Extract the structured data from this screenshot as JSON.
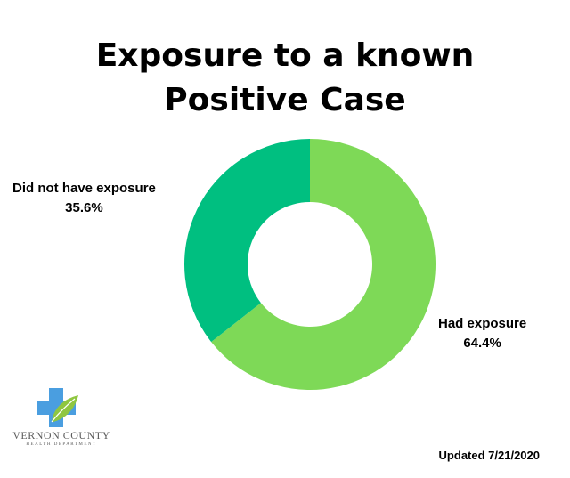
{
  "chart_data": {
    "type": "pie",
    "title_lines": [
      "Exposure to a known",
      "Positive Case"
    ],
    "slices": [
      {
        "name": "Had exposure",
        "label": "64.4%",
        "value": 64.4,
        "color": "#7ed957"
      },
      {
        "name": "Did not have exposure",
        "label": "35.6%",
        "value": 35.6,
        "color": "#00bf80"
      }
    ],
    "legend": "none"
  },
  "logo": {
    "name": "VERNON COUNTY",
    "subtitle": "HEALTH DEPARTMENT",
    "icon": "medical-cross-leaf-icon",
    "colors": {
      "cross": "#4a9ee0",
      "leaf": "#8fc640"
    }
  },
  "footer": {
    "updated": "Updated 7/21/2020"
  }
}
